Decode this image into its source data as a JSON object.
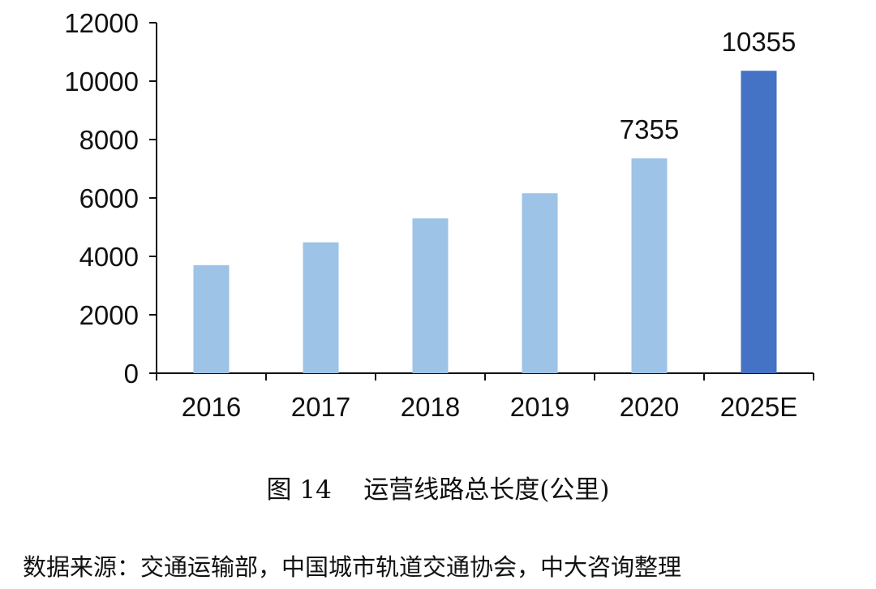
{
  "figure": {
    "caption": "图 14    运营线路总长度(公里)",
    "source": "数据来源：交通运输部，中国城市轨道交通协会，中大咨询整理"
  },
  "colors": {
    "bar": "#9DC3E6",
    "highlight_bar": "#4472C4",
    "axis": "#111111"
  },
  "chart_data": {
    "type": "bar",
    "categories": [
      "2016",
      "2017",
      "2018",
      "2019",
      "2020",
      "2025E"
    ],
    "values": [
      3700,
      4480,
      5300,
      6160,
      7355,
      10355
    ],
    "highlight_index": 5,
    "data_labels": [
      null,
      null,
      null,
      null,
      "7355",
      "10355"
    ],
    "ylim": [
      0,
      12000
    ],
    "yticks": [
      0,
      2000,
      4000,
      6000,
      8000,
      10000,
      12000
    ],
    "title": "",
    "xlabel": "",
    "ylabel": "",
    "grid": false,
    "legend": "none"
  }
}
